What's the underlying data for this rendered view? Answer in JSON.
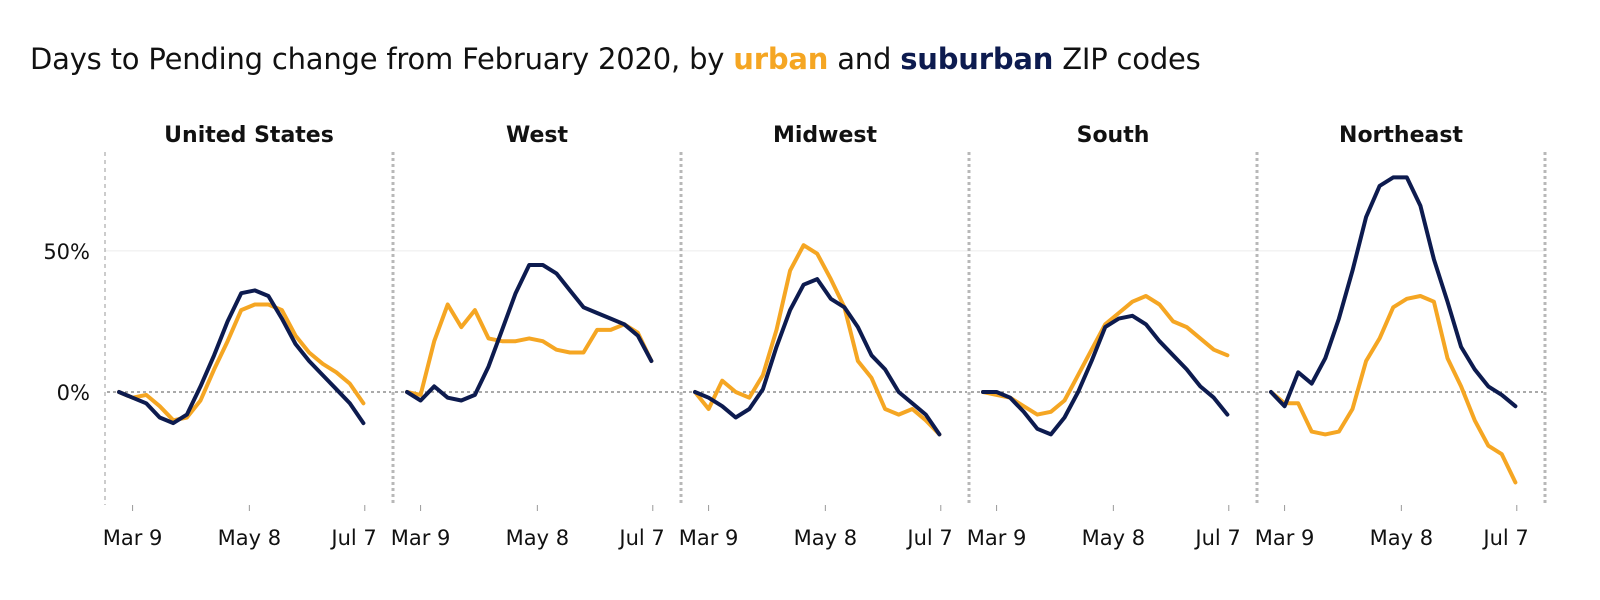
{
  "title": {
    "prefix": "Days to Pending change from February 2020, by ",
    "urban": "urban",
    "and": " and ",
    "suburban": "suburban",
    "suffix": " ZIP codes"
  },
  "colors": {
    "urban": "#f5a623",
    "suburban": "#0d1b4f"
  },
  "chart_data": {
    "type": "line",
    "grid": true,
    "ylim": [
      -0.4,
      0.85
    ],
    "yticks": [
      {
        "value": 0,
        "label": "0%"
      },
      {
        "value": 0.5,
        "label": "50%"
      }
    ],
    "xlim": [
      0,
      19
    ],
    "xticks": [
      {
        "value": 1,
        "label": "Mar 9"
      },
      {
        "value": 9.6,
        "label": "May 8"
      },
      {
        "value": 18.1,
        "label": "Jul 7"
      }
    ],
    "panels": [
      {
        "name": "United States",
        "series": [
          {
            "name": "urban",
            "color": "#f5a623",
            "values": [
              0,
              -0.02,
              -0.01,
              -0.05,
              -0.1,
              -0.09,
              -0.03,
              0.08,
              0.18,
              0.29,
              0.31,
              0.31,
              0.29,
              0.2,
              0.14,
              0.1,
              0.07,
              0.03,
              -0.04
            ]
          },
          {
            "name": "suburban",
            "color": "#0d1b4f",
            "values": [
              0,
              -0.02,
              -0.04,
              -0.09,
              -0.11,
              -0.08,
              0.02,
              0.13,
              0.25,
              0.35,
              0.36,
              0.34,
              0.26,
              0.17,
              0.11,
              0.06,
              0.01,
              -0.04,
              -0.11
            ]
          }
        ]
      },
      {
        "name": "West",
        "series": [
          {
            "name": "urban",
            "color": "#f5a623",
            "values": [
              0,
              -0.01,
              0.18,
              0.31,
              0.23,
              0.29,
              0.19,
              0.18,
              0.18,
              0.19,
              0.18,
              0.15,
              0.14,
              0.14,
              0.22,
              0.22,
              0.24,
              0.21,
              0.11
            ]
          },
          {
            "name": "suburban",
            "color": "#0d1b4f",
            "values": [
              0,
              -0.03,
              0.02,
              -0.02,
              -0.03,
              -0.01,
              0.09,
              0.22,
              0.35,
              0.45,
              0.45,
              0.42,
              0.36,
              0.3,
              0.28,
              0.26,
              0.24,
              0.2,
              0.11
            ]
          }
        ]
      },
      {
        "name": "Midwest",
        "series": [
          {
            "name": "urban",
            "color": "#f5a623",
            "values": [
              0,
              -0.06,
              0.04,
              0.0,
              -0.02,
              0.06,
              0.22,
              0.43,
              0.52,
              0.49,
              0.4,
              0.3,
              0.11,
              0.05,
              -0.06,
              -0.08,
              -0.06,
              -0.1,
              -0.15
            ]
          },
          {
            "name": "suburban",
            "color": "#0d1b4f",
            "values": [
              0,
              -0.02,
              -0.05,
              -0.09,
              -0.06,
              0.01,
              0.16,
              0.29,
              0.38,
              0.4,
              0.33,
              0.3,
              0.23,
              0.13,
              0.08,
              0.0,
              -0.04,
              -0.08,
              -0.15
            ]
          }
        ]
      },
      {
        "name": "South",
        "series": [
          {
            "name": "urban",
            "color": "#f5a623",
            "values": [
              0,
              -0.01,
              -0.02,
              -0.05,
              -0.08,
              -0.07,
              -0.03,
              0.06,
              0.15,
              0.24,
              0.28,
              0.32,
              0.34,
              0.31,
              0.25,
              0.23,
              0.19,
              0.15,
              0.13
            ]
          },
          {
            "name": "suburban",
            "color": "#0d1b4f",
            "values": [
              0,
              0.0,
              -0.02,
              -0.07,
              -0.13,
              -0.15,
              -0.09,
              0.0,
              0.11,
              0.23,
              0.26,
              0.27,
              0.24,
              0.18,
              0.13,
              0.08,
              0.02,
              -0.02,
              -0.08
            ]
          }
        ]
      },
      {
        "name": "Northeast",
        "series": [
          {
            "name": "urban",
            "color": "#f5a623",
            "values": [
              0,
              -0.04,
              -0.04,
              -0.14,
              -0.15,
              -0.14,
              -0.06,
              0.11,
              0.19,
              0.3,
              0.33,
              0.34,
              0.32,
              0.12,
              0.02,
              -0.1,
              -0.19,
              -0.22,
              -0.32
            ]
          },
          {
            "name": "suburban",
            "color": "#0d1b4f",
            "values": [
              0,
              -0.05,
              0.07,
              0.03,
              0.12,
              0.26,
              0.43,
              0.62,
              0.73,
              0.76,
              0.76,
              0.66,
              0.47,
              0.32,
              0.16,
              0.08,
              0.02,
              -0.01,
              -0.05
            ]
          }
        ]
      }
    ]
  }
}
